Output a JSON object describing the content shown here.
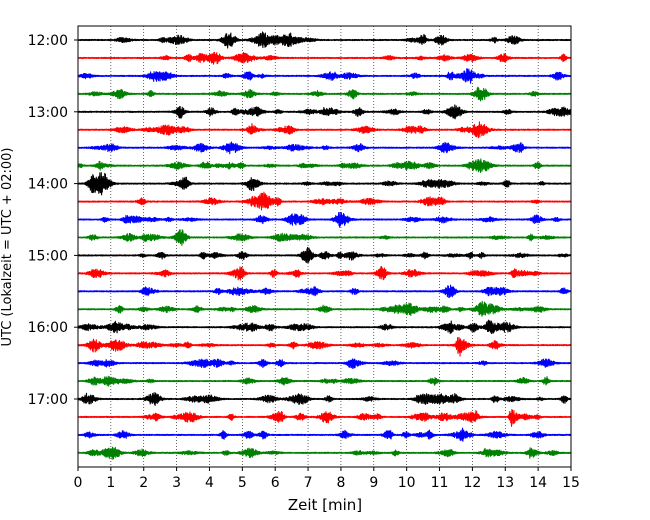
{
  "chart_data": {
    "type": "line",
    "title": "",
    "xlabel": "Zeit  [min]",
    "ylabel": "UTC (Lokalzeit = UTC + 02:00)",
    "xlim": [
      0,
      15
    ],
    "x_ticks": [
      0,
      1,
      2,
      3,
      4,
      5,
      6,
      7,
      8,
      9,
      10,
      11,
      12,
      13,
      14,
      15
    ],
    "y_tick_labels": [
      "12:00",
      "13:00",
      "14:00",
      "15:00",
      "16:00",
      "17:00"
    ],
    "grid": "vertical dotted",
    "trace_interval_minutes": 15,
    "trace_colors": [
      "#000000",
      "#ff0000",
      "#0000ff",
      "#008000"
    ],
    "series": [
      {
        "start": "12:00",
        "color": "#000000"
      },
      {
        "start": "12:15",
        "color": "#ff0000"
      },
      {
        "start": "12:30",
        "color": "#0000ff"
      },
      {
        "start": "12:45",
        "color": "#008000"
      },
      {
        "start": "13:00",
        "color": "#000000"
      },
      {
        "start": "13:15",
        "color": "#ff0000"
      },
      {
        "start": "13:30",
        "color": "#0000ff"
      },
      {
        "start": "13:45",
        "color": "#008000"
      },
      {
        "start": "14:00",
        "color": "#000000"
      },
      {
        "start": "14:15",
        "color": "#ff0000"
      },
      {
        "start": "14:30",
        "color": "#0000ff"
      },
      {
        "start": "14:45",
        "color": "#008000"
      },
      {
        "start": "15:00",
        "color": "#000000"
      },
      {
        "start": "15:15",
        "color": "#ff0000"
      },
      {
        "start": "15:30",
        "color": "#0000ff"
      },
      {
        "start": "15:45",
        "color": "#008000"
      },
      {
        "start": "16:00",
        "color": "#000000"
      },
      {
        "start": "16:15",
        "color": "#ff0000",
        "event_min": 11.6
      },
      {
        "start": "16:30",
        "color": "#0000ff"
      },
      {
        "start": "16:45",
        "color": "#008000"
      },
      {
        "start": "17:00",
        "color": "#000000"
      },
      {
        "start": "17:15",
        "color": "#ff0000",
        "event_min": 13.2
      },
      {
        "start": "17:30",
        "color": "#0000ff"
      },
      {
        "start": "17:45",
        "color": "#008000"
      }
    ]
  }
}
